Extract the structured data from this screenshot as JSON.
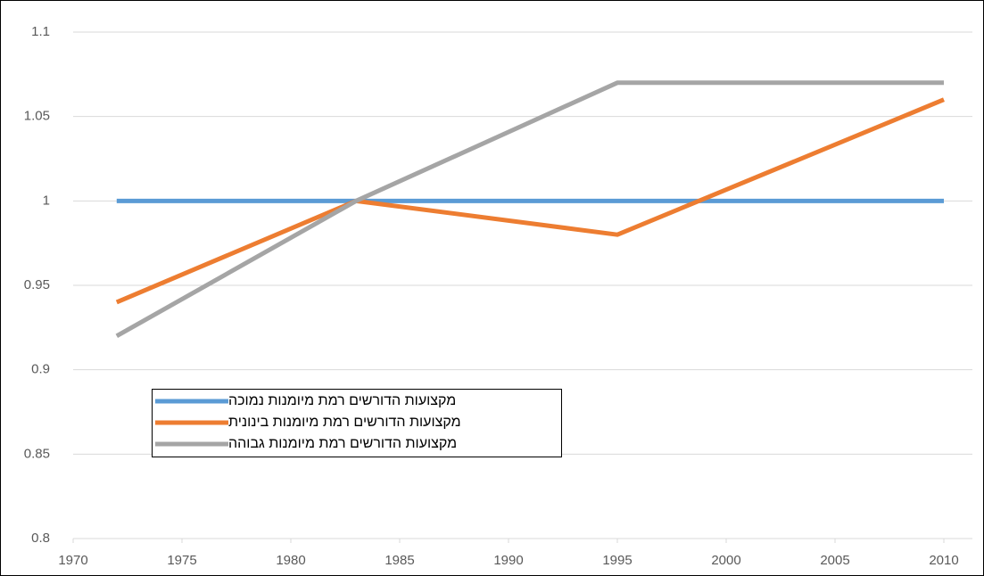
{
  "chart_data": {
    "type": "line",
    "x": [
      1972,
      1983,
      1995,
      2010
    ],
    "series": [
      {
        "name": "מקצועות הדורשים רמת מיומנות נמוכה",
        "color": "#5b9bd5",
        "values": [
          1,
          1,
          1,
          1
        ]
      },
      {
        "name": "מקצועות הדורשים רמת מיומנות בינונית",
        "color": "#ed7d31",
        "values": [
          0.94,
          1,
          0.98,
          1.06
        ]
      },
      {
        "name": "מקצועות הדורשים רמת מיומנות גבוהה",
        "color": "#a5a5a5",
        "values": [
          0.92,
          1,
          1.07,
          1.07
        ]
      }
    ],
    "xlim": [
      1970,
      2010
    ],
    "xticks": [
      1970,
      1975,
      1980,
      1985,
      1990,
      1995,
      2000,
      2005,
      2010
    ],
    "ylim": [
      0.8,
      1.1
    ],
    "yticks": [
      0.8,
      0.85,
      0.9,
      0.95,
      1,
      1.05,
      1.1
    ],
    "grid": true,
    "legend": "lower left"
  }
}
